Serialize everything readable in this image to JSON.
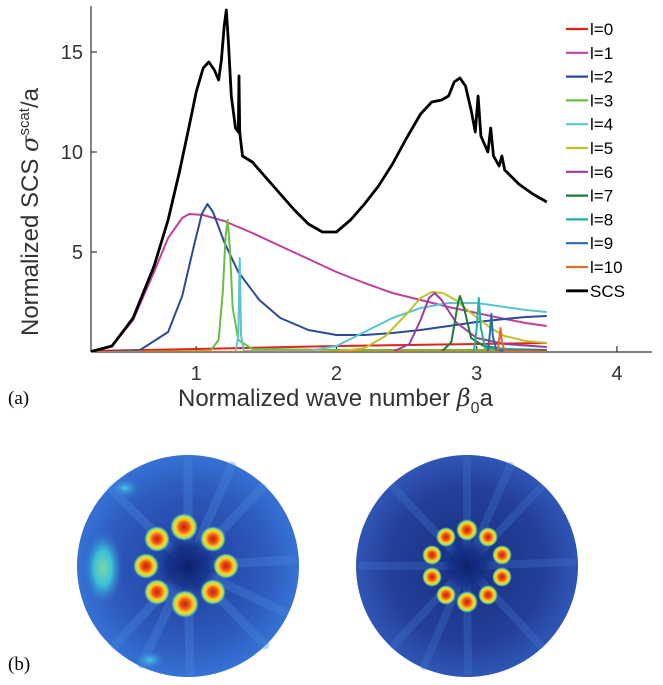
{
  "chart_data": {
    "type": "line",
    "xlabel": "Normalized wave number",
    "xlabel_symbol": "β",
    "xlabel_sub": "0",
    "xlabel_suffix": "a",
    "ylabel": "Normalized SCS",
    "ylabel_symbol": "σ",
    "ylabel_sup": "scat",
    "ylabel_suffix": "/a",
    "xlim": [
      0.25,
      4.25
    ],
    "ylim": [
      0,
      17.3
    ],
    "x_ticks": [
      "1",
      "2",
      "3",
      "4"
    ],
    "y_ticks": [
      "5",
      "10",
      "15"
    ],
    "legend_position": "top-right",
    "grid": false,
    "series": [
      {
        "name": "l=0",
        "color": "#e2231a",
        "points": [
          [
            0.25,
            0.05
          ],
          [
            1.0,
            0.15
          ],
          [
            2.0,
            0.3
          ],
          [
            3.0,
            0.4
          ],
          [
            3.5,
            0.45
          ]
        ]
      },
      {
        "name": "l=1",
        "color": "#c0409a",
        "points": [
          [
            0.25,
            0.05
          ],
          [
            0.4,
            0.3
          ],
          [
            0.55,
            1.6
          ],
          [
            0.7,
            4.0
          ],
          [
            0.8,
            5.7
          ],
          [
            0.9,
            6.7
          ],
          [
            0.95,
            6.9
          ],
          [
            1.05,
            6.85
          ],
          [
            1.2,
            6.55
          ],
          [
            1.4,
            5.95
          ],
          [
            1.6,
            5.3
          ],
          [
            1.8,
            4.65
          ],
          [
            2.0,
            4.0
          ],
          [
            2.2,
            3.45
          ],
          [
            2.4,
            2.95
          ],
          [
            2.6,
            2.6
          ],
          [
            2.8,
            2.25
          ],
          [
            3.0,
            1.95
          ],
          [
            3.2,
            1.65
          ],
          [
            3.35,
            1.45
          ],
          [
            3.5,
            1.3
          ]
        ]
      },
      {
        "name": "l=2",
        "color": "#2b4a9b",
        "points": [
          [
            0.25,
            0.0
          ],
          [
            0.6,
            0.1
          ],
          [
            0.8,
            1.0
          ],
          [
            0.9,
            2.8
          ],
          [
            0.98,
            5.2
          ],
          [
            1.04,
            6.9
          ],
          [
            1.08,
            7.4
          ],
          [
            1.12,
            7.0
          ],
          [
            1.2,
            5.5
          ],
          [
            1.3,
            4.0
          ],
          [
            1.45,
            2.6
          ],
          [
            1.6,
            1.7
          ],
          [
            1.8,
            1.1
          ],
          [
            2.0,
            0.85
          ],
          [
            2.2,
            0.85
          ],
          [
            2.4,
            0.95
          ],
          [
            2.6,
            1.1
          ],
          [
            2.8,
            1.3
          ],
          [
            3.0,
            1.5
          ],
          [
            3.2,
            1.65
          ],
          [
            3.35,
            1.75
          ],
          [
            3.5,
            1.8
          ]
        ]
      },
      {
        "name": "l=3",
        "color": "#6cbd45",
        "points": [
          [
            0.25,
            0.0
          ],
          [
            1.1,
            0.05
          ],
          [
            1.16,
            0.6
          ],
          [
            1.19,
            3.0
          ],
          [
            1.21,
            5.8
          ],
          [
            1.225,
            6.6
          ],
          [
            1.24,
            5.2
          ],
          [
            1.26,
            2.2
          ],
          [
            1.3,
            0.6
          ],
          [
            1.4,
            0.15
          ],
          [
            2.0,
            0.1
          ],
          [
            3.0,
            0.1
          ],
          [
            3.5,
            0.1
          ]
        ]
      },
      {
        "name": "l=4",
        "color": "#5bc3d4",
        "points": [
          [
            0.25,
            0.0
          ],
          [
            1.28,
            0.0
          ],
          [
            1.3,
            0.8
          ],
          [
            1.31,
            4.7
          ],
          [
            1.32,
            0.8
          ],
          [
            1.34,
            0.05
          ],
          [
            1.8,
            0.05
          ],
          [
            2.0,
            0.3
          ],
          [
            2.2,
            1.0
          ],
          [
            2.4,
            1.7
          ],
          [
            2.6,
            2.2
          ],
          [
            2.8,
            2.45
          ],
          [
            3.0,
            2.45
          ],
          [
            3.1,
            2.35
          ],
          [
            3.2,
            2.25
          ],
          [
            3.35,
            2.1
          ],
          [
            3.5,
            2.0
          ]
        ]
      },
      {
        "name": "l=5",
        "color": "#bfc22e",
        "points": [
          [
            0.25,
            0.0
          ],
          [
            2.0,
            0.0
          ],
          [
            2.2,
            0.2
          ],
          [
            2.35,
            0.8
          ],
          [
            2.5,
            1.9
          ],
          [
            2.6,
            2.7
          ],
          [
            2.68,
            3.0
          ],
          [
            2.76,
            2.95
          ],
          [
            2.85,
            2.6
          ],
          [
            2.95,
            2.0
          ],
          [
            3.1,
            1.2
          ],
          [
            3.2,
            0.8
          ],
          [
            3.35,
            0.55
          ],
          [
            3.5,
            0.45
          ]
        ]
      },
      {
        "name": "l=6",
        "color": "#9b3e9a",
        "points": [
          [
            0.25,
            0.0
          ],
          [
            2.4,
            0.0
          ],
          [
            2.52,
            0.4
          ],
          [
            2.6,
            1.6
          ],
          [
            2.66,
            2.7
          ],
          [
            2.7,
            2.95
          ],
          [
            2.75,
            2.6
          ],
          [
            2.85,
            1.5
          ],
          [
            3.0,
            0.7
          ],
          [
            3.2,
            0.4
          ],
          [
            3.5,
            0.25
          ]
        ]
      },
      {
        "name": "l=7",
        "color": "#1f7a3a",
        "points": [
          [
            0.25,
            0.0
          ],
          [
            2.75,
            0.0
          ],
          [
            2.82,
            0.5
          ],
          [
            2.86,
            2.2
          ],
          [
            2.88,
            2.8
          ],
          [
            2.91,
            2.2
          ],
          [
            2.96,
            0.7
          ],
          [
            3.05,
            0.3
          ],
          [
            3.2,
            0.15
          ],
          [
            3.5,
            0.1
          ]
        ]
      },
      {
        "name": "l=8",
        "color": "#1fb0a6",
        "points": [
          [
            0.25,
            0.0
          ],
          [
            2.98,
            0.0
          ],
          [
            3.0,
            1.2
          ],
          [
            3.015,
            2.7
          ],
          [
            3.03,
            1.2
          ],
          [
            3.06,
            0.2
          ],
          [
            3.5,
            0.05
          ]
        ]
      },
      {
        "name": "l=9",
        "color": "#2a6bb0",
        "points": [
          [
            0.25,
            0.0
          ],
          [
            3.08,
            0.0
          ],
          [
            3.095,
            1.0
          ],
          [
            3.105,
            1.9
          ],
          [
            3.115,
            0.8
          ],
          [
            3.14,
            0.1
          ],
          [
            3.5,
            0.05
          ]
        ]
      },
      {
        "name": "l=10",
        "color": "#e06a2a",
        "points": [
          [
            0.25,
            0.0
          ],
          [
            3.15,
            0.0
          ],
          [
            3.16,
            0.6
          ],
          [
            3.17,
            1.2
          ],
          [
            3.18,
            0.5
          ],
          [
            3.2,
            0.05
          ],
          [
            3.5,
            0.02
          ]
        ]
      },
      {
        "name": "SCS",
        "color": "#000000",
        "points": [
          [
            0.25,
            0.02
          ],
          [
            0.4,
            0.3
          ],
          [
            0.55,
            1.7
          ],
          [
            0.7,
            4.3
          ],
          [
            0.8,
            6.6
          ],
          [
            0.88,
            9.0
          ],
          [
            0.95,
            11.3
          ],
          [
            1.0,
            13.0
          ],
          [
            1.05,
            14.2
          ],
          [
            1.09,
            14.5
          ],
          [
            1.13,
            14.1
          ],
          [
            1.16,
            13.6
          ],
          [
            1.18,
            14.6
          ],
          [
            1.2,
            16.3
          ],
          [
            1.215,
            17.1
          ],
          [
            1.23,
            15.5
          ],
          [
            1.25,
            12.8
          ],
          [
            1.28,
            11.2
          ],
          [
            1.3,
            11.0
          ],
          [
            1.305,
            13.8
          ],
          [
            1.31,
            11.0
          ],
          [
            1.33,
            9.8
          ],
          [
            1.4,
            9.5
          ],
          [
            1.5,
            8.7
          ],
          [
            1.6,
            7.9
          ],
          [
            1.7,
            7.1
          ],
          [
            1.8,
            6.4
          ],
          [
            1.9,
            6.0
          ],
          [
            2.0,
            6.0
          ],
          [
            2.1,
            6.6
          ],
          [
            2.2,
            7.4
          ],
          [
            2.3,
            8.3
          ],
          [
            2.4,
            9.4
          ],
          [
            2.5,
            10.7
          ],
          [
            2.6,
            11.9
          ],
          [
            2.68,
            12.5
          ],
          [
            2.75,
            12.6
          ],
          [
            2.8,
            12.8
          ],
          [
            2.84,
            13.5
          ],
          [
            2.88,
            13.7
          ],
          [
            2.92,
            13.3
          ],
          [
            2.96,
            12.1
          ],
          [
            2.99,
            11.0
          ],
          [
            3.01,
            12.8
          ],
          [
            3.03,
            10.8
          ],
          [
            3.08,
            10.0
          ],
          [
            3.1,
            11.2
          ],
          [
            3.12,
            9.8
          ],
          [
            3.16,
            9.3
          ],
          [
            3.18,
            9.8
          ],
          [
            3.2,
            9.1
          ],
          [
            3.3,
            8.4
          ],
          [
            3.4,
            7.9
          ],
          [
            3.5,
            7.5
          ]
        ]
      }
    ],
    "panel_labels": {
      "a": "(a)",
      "b": "(b)"
    }
  },
  "field_maps": [
    {
      "name": "field-map-left",
      "background": "#2c54b5",
      "spots": 8,
      "ring_radius": 0.37,
      "hotspot_scale": 1.0
    },
    {
      "name": "field-map-right",
      "background": "#213f95",
      "spots": 10,
      "ring_radius": 0.32,
      "hotspot_scale": 0.8
    }
  ]
}
